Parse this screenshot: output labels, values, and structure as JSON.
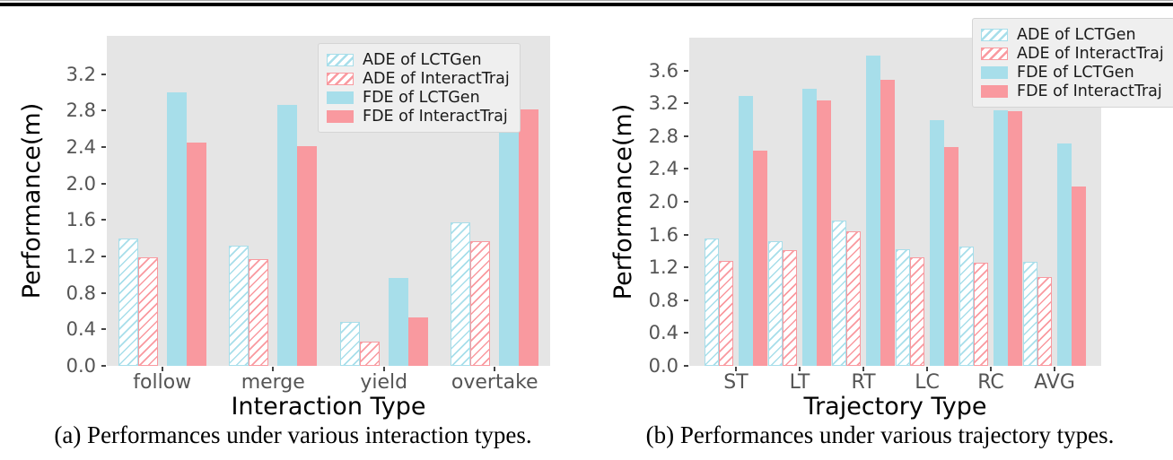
{
  "figure": {
    "caption_a": "(a) Performances under various interaction types.",
    "caption_b": "(b) Performances under various trajectory types."
  },
  "colors": {
    "lctgen_blue": "#A7DEEA",
    "interacttraj_pink": "#F9999F",
    "plot_bg": "#E5E5E5",
    "tick_label": "#555555",
    "axis_label": "#000000",
    "legend_bg": "#EFEFEF",
    "legend_border": "#D5D5D5"
  },
  "legend": {
    "items": [
      {
        "label": "ADE of LCTGen",
        "swatch": "hatched",
        "color": "#A7DEEA"
      },
      {
        "label": "ADE of InteractTraj",
        "swatch": "hatched",
        "color": "#F9999F"
      },
      {
        "label": "FDE of LCTGen",
        "swatch": "solid",
        "color": "#A7DEEA"
      },
      {
        "label": "FDE of InteractTraj",
        "swatch": "solid",
        "color": "#F9999F"
      }
    ]
  },
  "chart_data": [
    {
      "id": "interaction-types",
      "type": "bar",
      "title": "",
      "caption": "(a) Performances under various interaction types.",
      "xlabel": "Interaction Type",
      "ylabel": "Performance(m)",
      "categories": [
        "follow",
        "merge",
        "yield",
        "overtake"
      ],
      "yticks": [
        "0.0",
        "0.4",
        "0.8",
        "1.2",
        "1.6",
        "2.0",
        "2.4",
        "2.8",
        "3.2"
      ],
      "ylim": [
        0,
        3.62
      ],
      "grid": false,
      "legend_location": "upper-right-inside",
      "series": [
        {
          "name": "ADE of LCTGen",
          "values": [
            1.4,
            1.32,
            0.48,
            1.57
          ]
        },
        {
          "name": "ADE of InteractTraj",
          "values": [
            1.19,
            1.17,
            0.27,
            1.37
          ]
        },
        {
          "name": "FDE of LCTGen",
          "values": [
            3.0,
            2.86,
            0.96,
            3.42
          ]
        },
        {
          "name": "FDE of InteractTraj",
          "values": [
            2.45,
            2.41,
            0.53,
            2.81
          ]
        }
      ]
    },
    {
      "id": "trajectory-types",
      "type": "bar",
      "title": "",
      "caption": "(b) Performances under various trajectory types.",
      "xlabel": "Trajectory Type",
      "ylabel": "Performance(m)",
      "categories": [
        "ST",
        "LT",
        "RT",
        "LC",
        "RC",
        "AVG"
      ],
      "yticks": [
        "0.0",
        "0.4",
        "0.8",
        "1.2",
        "1.6",
        "2.0",
        "2.4",
        "2.8",
        "3.2",
        "3.6"
      ],
      "ylim": [
        0,
        4.0
      ],
      "grid": false,
      "legend_location": "upper-right-outside",
      "series": [
        {
          "name": "ADE of LCTGen",
          "values": [
            1.55,
            1.52,
            1.77,
            1.42,
            1.45,
            1.27
          ]
        },
        {
          "name": "ADE of InteractTraj",
          "values": [
            1.28,
            1.41,
            1.64,
            1.32,
            1.26,
            1.08
          ]
        },
        {
          "name": "FDE of LCTGen",
          "values": [
            3.29,
            3.38,
            3.78,
            3.0,
            3.11,
            2.71
          ]
        },
        {
          "name": "FDE of InteractTraj",
          "values": [
            2.62,
            3.23,
            3.49,
            2.67,
            3.1,
            2.19
          ]
        }
      ]
    }
  ]
}
